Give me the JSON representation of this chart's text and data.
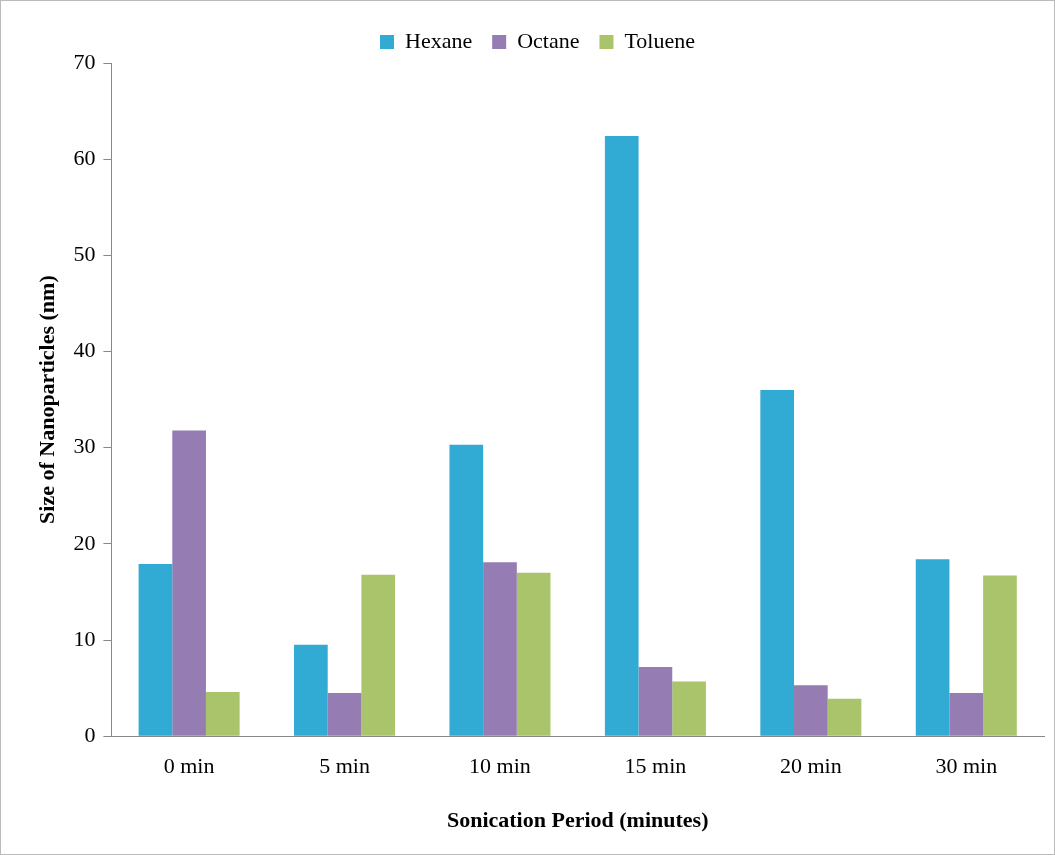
{
  "chart_data": {
    "type": "bar",
    "xlabel": "Sonication Period (minutes)",
    "ylabel": "Size of Nanoparticles (nm)",
    "categories": [
      "0 min",
      "5 min",
      "10 min",
      "15 min",
      "20 min",
      "30 min"
    ],
    "series": [
      {
        "name": "Hexane",
        "color": "#31aad4",
        "values": [
          17.9,
          9.5,
          30.3,
          62.4,
          36.0,
          18.4
        ]
      },
      {
        "name": "Octane",
        "color": "#957db4",
        "values": [
          31.8,
          4.5,
          18.1,
          7.2,
          5.3,
          4.5
        ]
      },
      {
        "name": "Toluene",
        "color": "#a9c46a",
        "values": [
          4.6,
          16.8,
          17.0,
          5.7,
          3.9,
          16.7
        ]
      }
    ],
    "ylim": [
      0,
      70
    ],
    "yticks": [
      0,
      10,
      20,
      30,
      40,
      50,
      60,
      70
    ],
    "grid": false,
    "legend": "top"
  }
}
